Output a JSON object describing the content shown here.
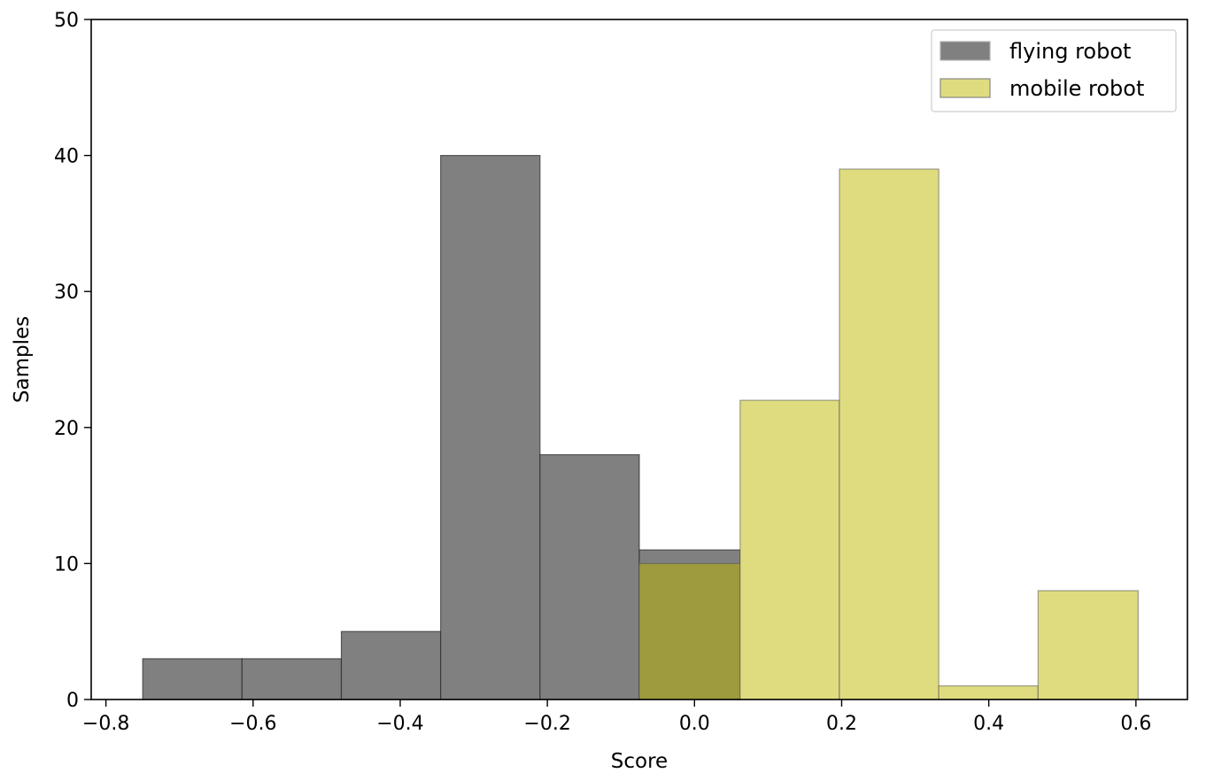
{
  "chart_data": {
    "type": "bar",
    "xlabel": "Score",
    "ylabel": "Samples",
    "xlim": [
      -0.82,
      0.67
    ],
    "ylim": [
      0,
      50
    ],
    "xticks": [
      -0.8,
      -0.6,
      -0.4,
      -0.2,
      0.0,
      0.2,
      0.4,
      0.6
    ],
    "xtick_labels": [
      "−0.8",
      "−0.6",
      "−0.4",
      "−0.2",
      "0.0",
      "0.2",
      "0.4",
      "0.6"
    ],
    "yticks": [
      0,
      10,
      20,
      30,
      40,
      50
    ],
    "ytick_labels": [
      "0",
      "10",
      "20",
      "30",
      "40",
      "50"
    ],
    "grid": false,
    "legend_position": "top-right",
    "series": [
      {
        "name": "flying robot",
        "color": "#808080",
        "alpha": 1.0,
        "bins": [
          {
            "x0": -0.75,
            "x1": -0.615,
            "value": 3
          },
          {
            "x0": -0.615,
            "x1": -0.48,
            "value": 3
          },
          {
            "x0": -0.48,
            "x1": -0.345,
            "value": 5
          },
          {
            "x0": -0.345,
            "x1": -0.21,
            "value": 40
          },
          {
            "x0": -0.21,
            "x1": -0.075,
            "value": 18
          },
          {
            "x0": -0.075,
            "x1": 0.062,
            "value": 11
          }
        ]
      },
      {
        "name": "mobile robot",
        "color": "#dedc7e",
        "alpha": 1.0,
        "bins": [
          {
            "x0": -0.075,
            "x1": 0.062,
            "value": 10
          },
          {
            "x0": 0.062,
            "x1": 0.197,
            "value": 22
          },
          {
            "x0": 0.197,
            "x1": 0.332,
            "value": 39
          },
          {
            "x0": 0.332,
            "x1": 0.467,
            "value": 1
          },
          {
            "x0": 0.467,
            "x1": 0.603,
            "value": 8
          }
        ]
      }
    ]
  }
}
